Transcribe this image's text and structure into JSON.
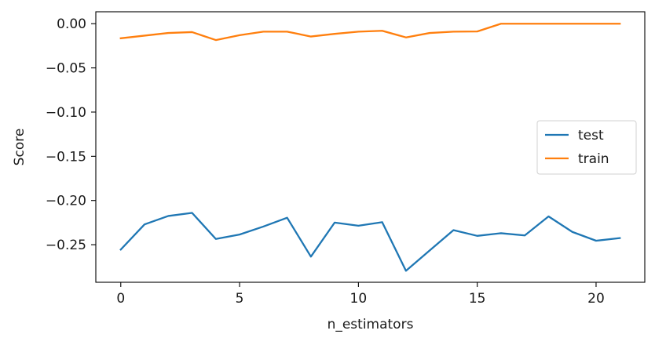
{
  "chart_data": {
    "type": "line",
    "title": "",
    "xlabel": "n_estimators",
    "ylabel": "Score",
    "x": [
      0,
      1,
      2,
      3,
      4,
      5,
      6,
      7,
      8,
      9,
      10,
      11,
      12,
      13,
      14,
      15,
      16,
      17,
      18,
      19,
      20,
      21
    ],
    "xticks": [
      0,
      5,
      10,
      15,
      20
    ],
    "xtick_labels": [
      "0",
      "5",
      "10",
      "15",
      "20"
    ],
    "yticks": [
      0.0,
      -0.05,
      -0.1,
      -0.15,
      -0.2,
      -0.25
    ],
    "ytick_labels": [
      "0.00",
      "−0.05",
      "−0.10",
      "−0.15",
      "−0.20",
      "−0.25"
    ],
    "xlim": [
      -1.05,
      22.05
    ],
    "ylim": [
      -0.2925,
      0.0135
    ],
    "grid": false,
    "legend_position": "center-right",
    "series": [
      {
        "name": "test",
        "color": "#1f77b4",
        "values": [
          -0.2555,
          -0.227,
          -0.2175,
          -0.214,
          -0.2435,
          -0.2385,
          -0.2295,
          -0.2195,
          -0.2635,
          -0.225,
          -0.2285,
          -0.2245,
          -0.2795,
          -0.2565,
          -0.2335,
          -0.24,
          -0.237,
          -0.2395,
          -0.218,
          -0.2355,
          -0.2455,
          -0.2425
        ]
      },
      {
        "name": "train",
        "color": "#ff7f0e",
        "values": [
          -0.0165,
          -0.0135,
          -0.0105,
          -0.0095,
          -0.0185,
          -0.013,
          -0.009,
          -0.009,
          -0.0145,
          -0.0115,
          -0.009,
          -0.008,
          -0.0155,
          -0.0105,
          -0.009,
          -0.0088,
          0.0,
          0.0,
          0.0,
          0.0,
          0.0,
          0.0
        ]
      }
    ]
  }
}
